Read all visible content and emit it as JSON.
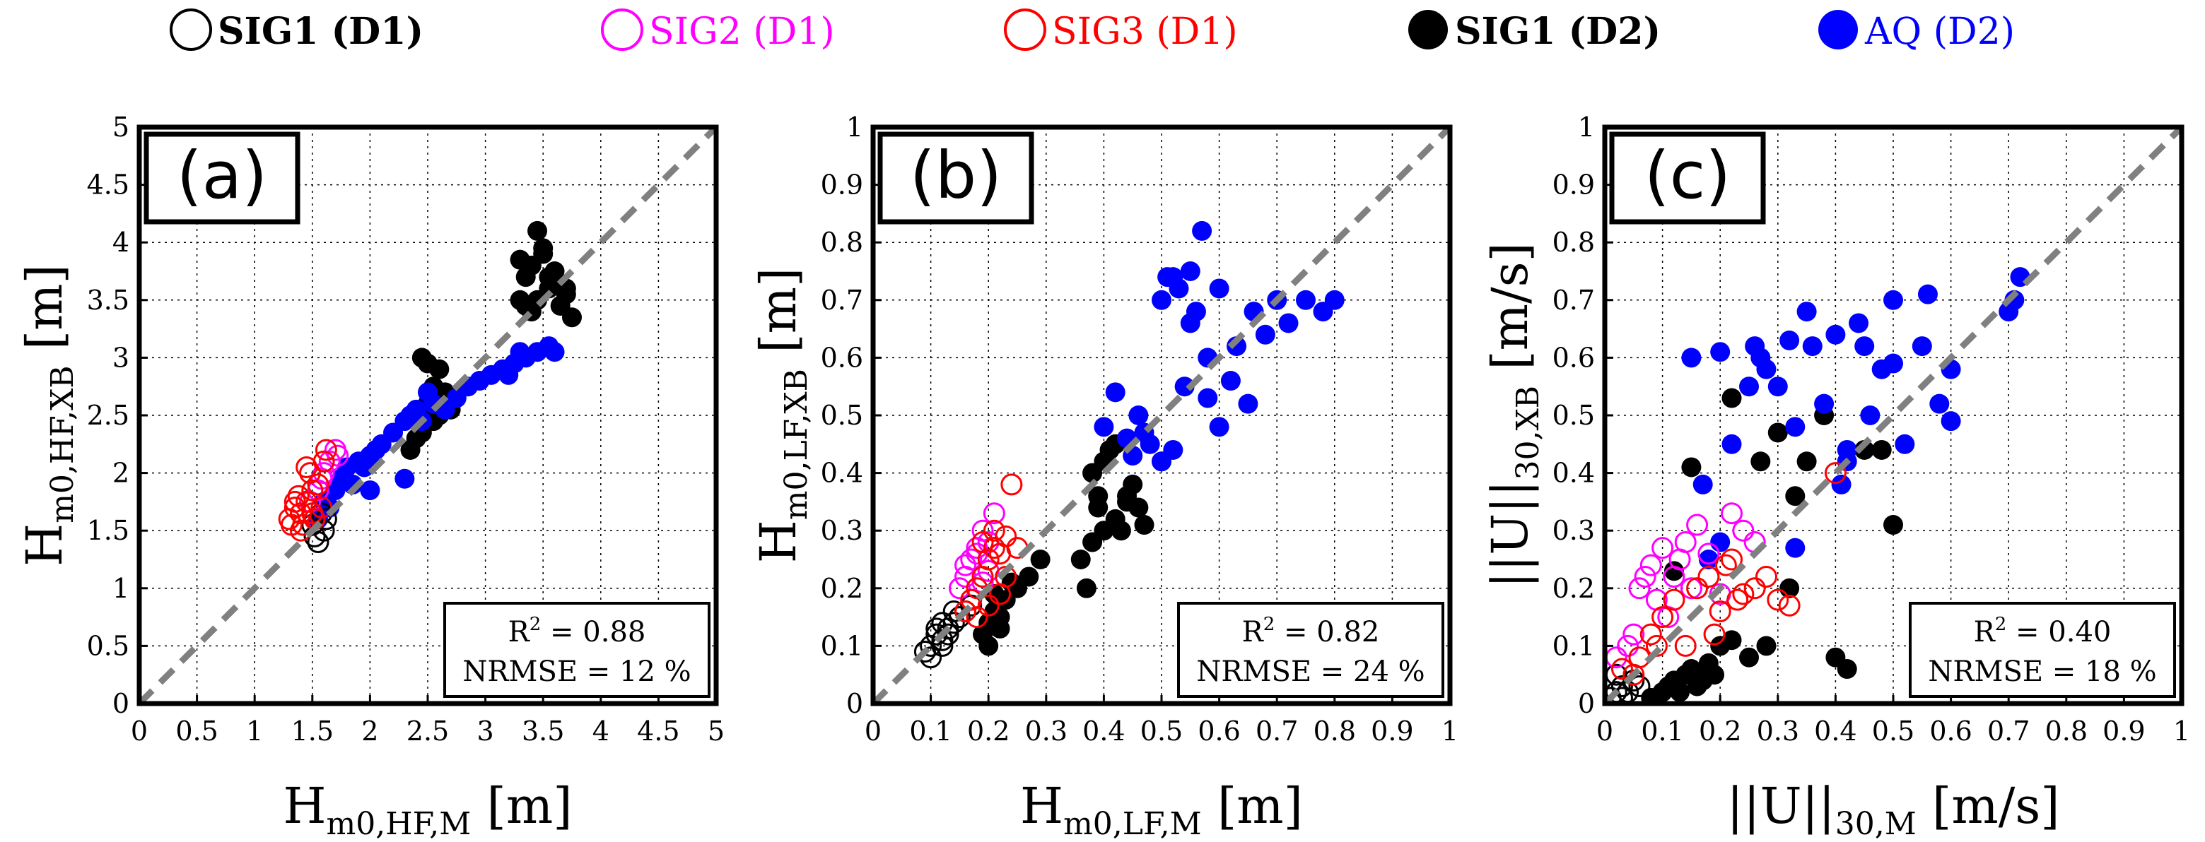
{
  "legend": {
    "items": [
      {
        "label": "SIG1 (D1)",
        "color": "#000000",
        "filled": false,
        "bold": true
      },
      {
        "label": "SIG2 (D1)",
        "color": "#ff00ff",
        "filled": false,
        "bold": false
      },
      {
        "label": "SIG3 (D1)",
        "color": "#ff0000",
        "filled": false,
        "bold": false
      },
      {
        "label": "SIG1 (D2)",
        "color": "#000000",
        "filled": true,
        "bold": true
      },
      {
        "label": "AQ (D2)",
        "color": "#0000ff",
        "filled": true,
        "bold": false
      }
    ]
  },
  "chart_data": [
    {
      "type": "scatter",
      "panel_label": "(a)",
      "xlabel": {
        "main": "H",
        "sub": "m0,HF,M",
        "unit": "[m]"
      },
      "ylabel": {
        "main": "H",
        "sub": "m0,HF,XB",
        "unit": "[m]"
      },
      "xlim": [
        0,
        5
      ],
      "ylim": [
        0,
        5
      ],
      "xticks": [
        "0",
        "0.5",
        "1",
        "1.5",
        "2",
        "2.5",
        "3",
        "3.5",
        "4",
        "4.5",
        "5"
      ],
      "yticks": [
        "0",
        "0.5",
        "1",
        "1.5",
        "2",
        "2.5",
        "3",
        "3.5",
        "4",
        "4.5",
        "5"
      ],
      "grid": true,
      "one_to_one_line": true,
      "stats": {
        "r2": "0.88",
        "nrmse": "12 %"
      },
      "series": [
        {
          "name": "SIG1 (D1)",
          "x": [
            1.55,
            1.6,
            1.5,
            1.58,
            1.62,
            1.52
          ],
          "y": [
            1.4,
            1.5,
            1.55,
            1.65,
            1.6,
            1.45
          ]
        },
        {
          "name": "SIG2 (D1)",
          "x": [
            1.5,
            1.55,
            1.6,
            1.65,
            1.7,
            1.72,
            1.58,
            1.48
          ],
          "y": [
            1.65,
            1.85,
            2.0,
            2.1,
            2.2,
            2.15,
            1.95,
            1.75
          ]
        },
        {
          "name": "SIG3 (D1)",
          "x": [
            1.3,
            1.35,
            1.4,
            1.38,
            1.42,
            1.45,
            1.5,
            1.55,
            1.6,
            1.48,
            1.52,
            1.4,
            1.35,
            1.58,
            1.62,
            1.45,
            1.32,
            1.5
          ],
          "y": [
            1.6,
            1.7,
            1.65,
            1.8,
            1.55,
            1.75,
            1.85,
            1.9,
            2.1,
            2.0,
            1.6,
            1.5,
            1.75,
            1.7,
            2.2,
            2.05,
            1.55,
            1.65
          ]
        },
        {
          "name": "SIG1 (D2)",
          "x": [
            2.35,
            2.45,
            2.4,
            2.5,
            2.55,
            2.6,
            2.65,
            2.7,
            2.45,
            2.6,
            2.55,
            2.5,
            2.4,
            3.3,
            3.35,
            3.4,
            3.45,
            3.5,
            3.55,
            3.6,
            3.65,
            3.7,
            3.75,
            3.4,
            3.5,
            3.6,
            3.3,
            3.45,
            3.55,
            3.35,
            3.7
          ],
          "y": [
            2.2,
            2.35,
            2.5,
            2.6,
            2.75,
            2.9,
            2.7,
            2.55,
            3.0,
            2.5,
            2.45,
            2.95,
            2.3,
            3.5,
            3.7,
            3.8,
            4.1,
            3.9,
            3.6,
            3.75,
            3.45,
            3.55,
            3.35,
            3.4,
            3.95,
            3.65,
            3.85,
            3.5,
            3.7,
            3.45,
            3.6
          ]
        },
        {
          "name": "AQ (D2)",
          "x": [
            1.55,
            1.6,
            1.7,
            1.75,
            1.8,
            1.9,
            1.95,
            2.0,
            2.05,
            2.1,
            2.2,
            2.3,
            2.35,
            2.4,
            2.45,
            2.55,
            2.65,
            2.75,
            2.85,
            2.95,
            3.05,
            3.15,
            3.25,
            3.35,
            3.45,
            3.55,
            3.6,
            3.3,
            3.2,
            2.5,
            2.3,
            2.0,
            1.85,
            1.65
          ],
          "y": [
            1.6,
            1.75,
            1.85,
            1.95,
            2.05,
            2.1,
            2.05,
            2.15,
            2.2,
            2.25,
            2.35,
            2.45,
            2.5,
            2.55,
            2.45,
            2.6,
            2.55,
            2.65,
            2.75,
            2.8,
            2.85,
            2.9,
            2.95,
            3.0,
            3.05,
            3.1,
            3.05,
            3.05,
            2.85,
            2.7,
            1.95,
            1.85,
            1.9,
            1.7
          ]
        }
      ]
    },
    {
      "type": "scatter",
      "panel_label": "(b)",
      "xlabel": {
        "main": "H",
        "sub": "m0,LF,M",
        "unit": "[m]"
      },
      "ylabel": {
        "main": "H",
        "sub": "m0,LF,XB",
        "unit": "[m]"
      },
      "xlim": [
        0,
        1
      ],
      "ylim": [
        0,
        1
      ],
      "xticks": [
        "0",
        "0.1",
        "0.2",
        "0.3",
        "0.4",
        "0.5",
        "0.6",
        "0.7",
        "0.8",
        "0.9",
        "1"
      ],
      "yticks": [
        "0",
        "0.1",
        "0.2",
        "0.3",
        "0.4",
        "0.5",
        "0.6",
        "0.7",
        "0.8",
        "0.9",
        "1"
      ],
      "grid": true,
      "one_to_one_line": true,
      "stats": {
        "r2": "0.82",
        "nrmse": "24 %"
      },
      "series": [
        {
          "name": "SIG1 (D1)",
          "x": [
            0.09,
            0.1,
            0.11,
            0.12,
            0.13,
            0.14,
            0.1,
            0.12,
            0.15,
            0.16,
            0.11,
            0.13,
            0.14,
            0.17,
            0.12
          ],
          "y": [
            0.09,
            0.1,
            0.12,
            0.11,
            0.13,
            0.14,
            0.08,
            0.1,
            0.15,
            0.16,
            0.13,
            0.12,
            0.16,
            0.17,
            0.14
          ]
        },
        {
          "name": "SIG2 (D1)",
          "x": [
            0.15,
            0.16,
            0.17,
            0.18,
            0.19,
            0.2,
            0.21,
            0.16,
            0.18,
            0.2,
            0.19,
            0.17
          ],
          "y": [
            0.2,
            0.22,
            0.25,
            0.27,
            0.3,
            0.28,
            0.33,
            0.24,
            0.26,
            0.23,
            0.21,
            0.18
          ]
        },
        {
          "name": "SIG3 (D1)",
          "x": [
            0.17,
            0.18,
            0.19,
            0.2,
            0.21,
            0.22,
            0.23,
            0.24,
            0.18,
            0.2,
            0.22,
            0.21,
            0.19,
            0.16,
            0.23,
            0.25
          ],
          "y": [
            0.18,
            0.2,
            0.22,
            0.25,
            0.27,
            0.26,
            0.29,
            0.38,
            0.15,
            0.17,
            0.19,
            0.3,
            0.28,
            0.16,
            0.22,
            0.27
          ]
        },
        {
          "name": "SIG1 (D2)",
          "x": [
            0.19,
            0.2,
            0.21,
            0.22,
            0.23,
            0.25,
            0.27,
            0.29,
            0.2,
            0.22,
            0.24,
            0.21,
            0.36,
            0.37,
            0.38,
            0.39,
            0.4,
            0.41,
            0.42,
            0.43,
            0.44,
            0.45,
            0.46,
            0.47,
            0.38,
            0.4,
            0.42,
            0.39,
            0.44
          ],
          "y": [
            0.12,
            0.14,
            0.16,
            0.15,
            0.18,
            0.2,
            0.22,
            0.25,
            0.1,
            0.13,
            0.21,
            0.19,
            0.25,
            0.2,
            0.28,
            0.36,
            0.42,
            0.44,
            0.32,
            0.3,
            0.35,
            0.38,
            0.34,
            0.31,
            0.4,
            0.3,
            0.45,
            0.34,
            0.36
          ]
        },
        {
          "name": "AQ (D2)",
          "x": [
            0.4,
            0.42,
            0.44,
            0.46,
            0.48,
            0.5,
            0.52,
            0.5,
            0.51,
            0.53,
            0.55,
            0.56,
            0.57,
            0.58,
            0.6,
            0.62,
            0.63,
            0.66,
            0.68,
            0.7,
            0.72,
            0.75,
            0.78,
            0.8,
            0.65,
            0.52,
            0.54,
            0.58,
            0.6,
            0.47,
            0.45,
            0.5,
            0.55
          ],
          "y": [
            0.48,
            0.54,
            0.46,
            0.5,
            0.45,
            0.42,
            0.44,
            0.7,
            0.74,
            0.72,
            0.75,
            0.68,
            0.82,
            0.6,
            0.72,
            0.56,
            0.62,
            0.68,
            0.64,
            0.7,
            0.66,
            0.7,
            0.68,
            0.7,
            0.52,
            0.74,
            0.55,
            0.53,
            0.48,
            0.47,
            0.43,
            0.42,
            0.66
          ]
        }
      ]
    },
    {
      "type": "scatter",
      "panel_label": "(c)",
      "xlabel": {
        "main": "||U||",
        "sub": "30,M",
        "unit": "[m/s]"
      },
      "ylabel": {
        "main": "||U||",
        "sub": "30,XB",
        "unit": "[m/s]"
      },
      "xlim": [
        0,
        1
      ],
      "ylim": [
        0,
        1
      ],
      "xticks": [
        "0",
        "0.1",
        "0.2",
        "0.3",
        "0.4",
        "0.5",
        "0.6",
        "0.7",
        "0.8",
        "0.9",
        "1"
      ],
      "yticks": [
        "0",
        "0.1",
        "0.2",
        "0.3",
        "0.4",
        "0.5",
        "0.6",
        "0.7",
        "0.8",
        "0.9",
        "1"
      ],
      "grid": true,
      "one_to_one_line": true,
      "stats": {
        "r2": "0.40",
        "nrmse": "18 %"
      },
      "series": [
        {
          "name": "SIG1 (D1)",
          "x": [
            0.01,
            0.02,
            0.03,
            0.04,
            0.05,
            0.02,
            0.03,
            0.06
          ],
          "y": [
            0.01,
            0.02,
            0.03,
            0.02,
            0.04,
            0.05,
            0.01,
            0.03
          ]
        },
        {
          "name": "SIG2 (D1)",
          "x": [
            0.02,
            0.04,
            0.06,
            0.08,
            0.09,
            0.1,
            0.11,
            0.12,
            0.14,
            0.15,
            0.16,
            0.18,
            0.2,
            0.22,
            0.24,
            0.26,
            0.07,
            0.13,
            0.05
          ],
          "y": [
            0.08,
            0.1,
            0.2,
            0.24,
            0.18,
            0.27,
            0.15,
            0.22,
            0.28,
            0.2,
            0.31,
            0.26,
            0.19,
            0.33,
            0.3,
            0.28,
            0.22,
            0.25,
            0.12
          ]
        },
        {
          "name": "SIG3 (D1)",
          "x": [
            0.03,
            0.05,
            0.06,
            0.08,
            0.1,
            0.12,
            0.14,
            0.16,
            0.18,
            0.2,
            0.22,
            0.24,
            0.26,
            0.28,
            0.3,
            0.32,
            0.4,
            0.19,
            0.21,
            0.23,
            0.09
          ],
          "y": [
            0.06,
            0.05,
            0.08,
            0.12,
            0.15,
            0.18,
            0.1,
            0.2,
            0.22,
            0.16,
            0.25,
            0.19,
            0.2,
            0.22,
            0.18,
            0.17,
            0.4,
            0.12,
            0.24,
            0.18,
            0.1
          ]
        },
        {
          "name": "SIG1 (D2)",
          "x": [
            0.08,
            0.1,
            0.11,
            0.12,
            0.13,
            0.14,
            0.15,
            0.16,
            0.17,
            0.18,
            0.19,
            0.2,
            0.22,
            0.25,
            0.27,
            0.3,
            0.32,
            0.33,
            0.35,
            0.38,
            0.4,
            0.42,
            0.45,
            0.48,
            0.5,
            0.22,
            0.28,
            0.12,
            0.15,
            0.18
          ],
          "y": [
            0.01,
            0.02,
            0.03,
            0.04,
            0.02,
            0.05,
            0.06,
            0.03,
            0.04,
            0.07,
            0.05,
            0.1,
            0.53,
            0.08,
            0.42,
            0.47,
            0.2,
            0.36,
            0.42,
            0.5,
            0.08,
            0.06,
            0.44,
            0.44,
            0.31,
            0.11,
            0.1,
            0.23,
            0.41,
            0.05
          ]
        },
        {
          "name": "AQ (D2)",
          "x": [
            0.15,
            0.17,
            0.2,
            0.22,
            0.25,
            0.27,
            0.28,
            0.3,
            0.32,
            0.33,
            0.35,
            0.36,
            0.38,
            0.4,
            0.42,
            0.44,
            0.45,
            0.46,
            0.48,
            0.5,
            0.52,
            0.55,
            0.56,
            0.58,
            0.6,
            0.6,
            0.7,
            0.71,
            0.72,
            0.33,
            0.26,
            0.2,
            0.18,
            0.41,
            0.42,
            0.5
          ],
          "y": [
            0.6,
            0.38,
            0.61,
            0.45,
            0.55,
            0.6,
            0.58,
            0.55,
            0.63,
            0.48,
            0.68,
            0.62,
            0.52,
            0.64,
            0.44,
            0.66,
            0.62,
            0.5,
            0.58,
            0.7,
            0.45,
            0.62,
            0.71,
            0.52,
            0.58,
            0.49,
            0.68,
            0.7,
            0.74,
            0.27,
            0.62,
            0.28,
            0.25,
            0.38,
            0.42,
            0.59
          ]
        }
      ]
    }
  ]
}
